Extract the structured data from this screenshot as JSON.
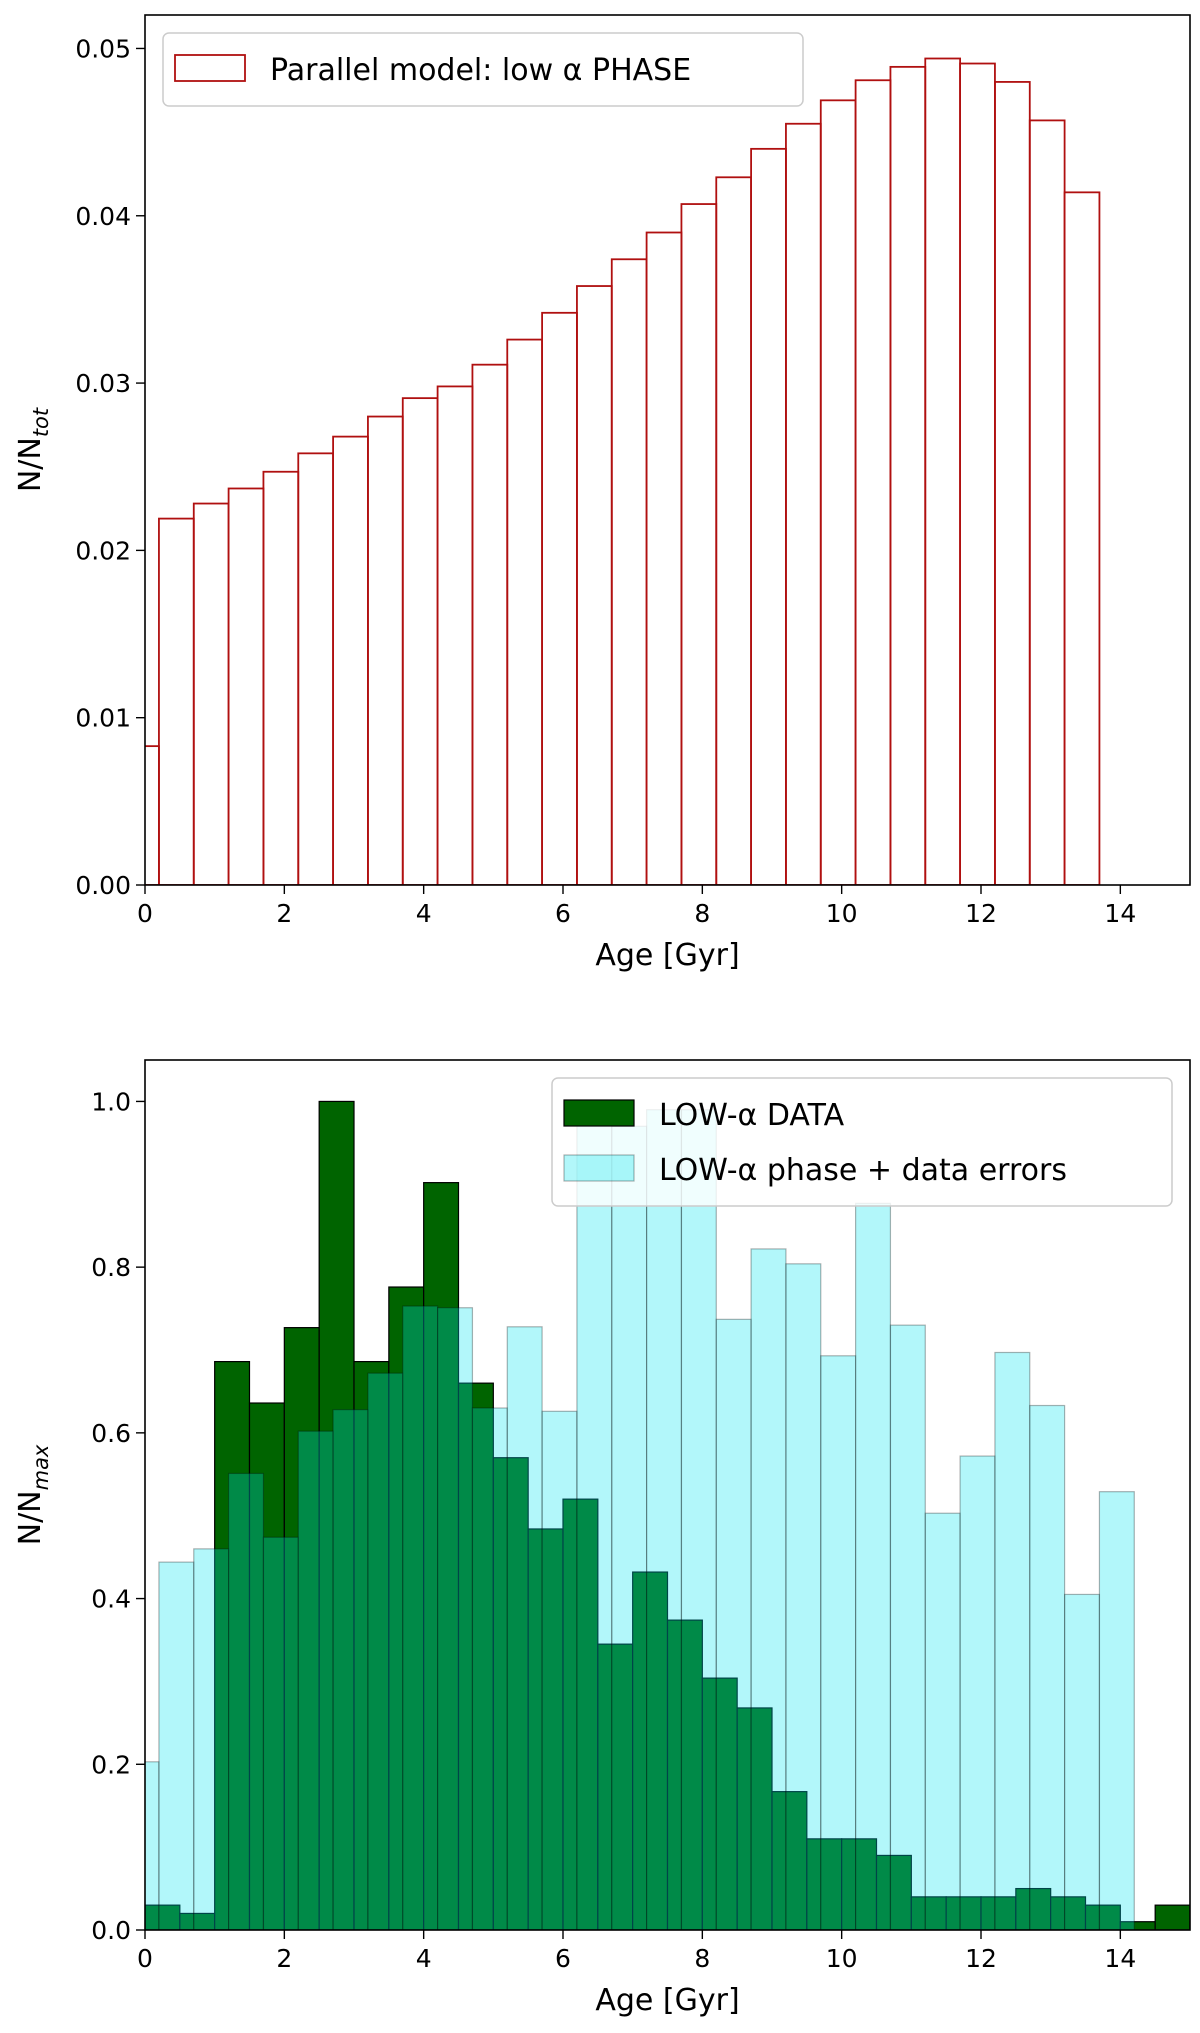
{
  "chart_data": [
    {
      "type": "bar",
      "histogram": true,
      "bin_width": 0.5,
      "xlabel": "Age [Gyr]",
      "ylabel_main": "N/N",
      "ylabel_sub": "tot",
      "xlim": [
        0,
        15
      ],
      "ylim": [
        0,
        0.052
      ],
      "xticks": [
        "0",
        "2",
        "4",
        "6",
        "8",
        "10",
        "12",
        "14"
      ],
      "yticks": [
        "0.00",
        "0.01",
        "0.02",
        "0.03",
        "0.04",
        "0.05"
      ],
      "grid": false,
      "legend_position": "top-left",
      "series": [
        {
          "name": "Parallel model: low α PHASE",
          "style": "step-outline",
          "color": "#b01010",
          "bin_edges": [
            -0.3,
            0.2,
            0.7,
            1.2,
            1.7,
            2.2,
            2.7,
            3.2,
            3.7,
            4.2,
            4.7,
            5.2,
            5.7,
            6.2,
            6.7,
            7.2,
            7.7,
            8.2,
            8.7,
            9.2,
            9.7,
            10.2,
            10.7,
            11.2,
            11.7,
            12.2,
            12.7,
            13.2,
            13.7
          ],
          "values": [
            0.0083,
            0.0219,
            0.0228,
            0.0237,
            0.0247,
            0.0258,
            0.0268,
            0.028,
            0.0291,
            0.0298,
            0.0311,
            0.0326,
            0.0342,
            0.0358,
            0.0374,
            0.039,
            0.0407,
            0.0423,
            0.044,
            0.0455,
            0.0469,
            0.0481,
            0.0489,
            0.0494,
            0.0491,
            0.048,
            0.0457,
            0.0414
          ]
        }
      ]
    },
    {
      "type": "bar",
      "histogram": true,
      "bin_width": 0.5,
      "xlabel": "Age [Gyr]",
      "ylabel_main": "N/N",
      "ylabel_sub": "max",
      "xlim": [
        0,
        15
      ],
      "ylim": [
        0,
        1.05
      ],
      "xticks": [
        "0",
        "2",
        "4",
        "6",
        "8",
        "10",
        "12",
        "14"
      ],
      "yticks": [
        "0.0",
        "0.2",
        "0.4",
        "0.6",
        "0.8",
        "1.0"
      ],
      "grid": false,
      "legend_position": "top-right",
      "series": [
        {
          "name": "LOW-α DATA",
          "style": "filled",
          "color": "#006400",
          "bin_start": 0.0,
          "values": [
            0.03,
            0.02,
            0.686,
            0.636,
            0.727,
            1.0,
            0.686,
            0.776,
            0.902,
            0.66,
            0.57,
            0.484,
            0.52,
            0.345,
            0.432,
            0.374,
            0.304,
            0.268,
            0.167,
            0.11,
            0.11,
            0.09,
            0.04,
            0.04,
            0.04,
            0.05,
            0.04,
            0.03,
            0.01,
            0.03,
            0.01
          ]
        },
        {
          "name": "LOW-α phase + data errors",
          "style": "filled-translucent",
          "color": "#00e5ee",
          "bin_start": -0.3,
          "values": [
            0.203,
            0.444,
            0.46,
            0.551,
            0.474,
            0.602,
            0.628,
            0.672,
            0.753,
            0.751,
            0.63,
            0.728,
            0.626,
            0.98,
            0.97,
            0.99,
            0.99,
            0.737,
            0.822,
            0.804,
            0.693,
            0.877,
            0.73,
            0.503,
            0.572,
            0.697,
            0.633,
            0.405,
            0.529
          ]
        }
      ]
    }
  ]
}
